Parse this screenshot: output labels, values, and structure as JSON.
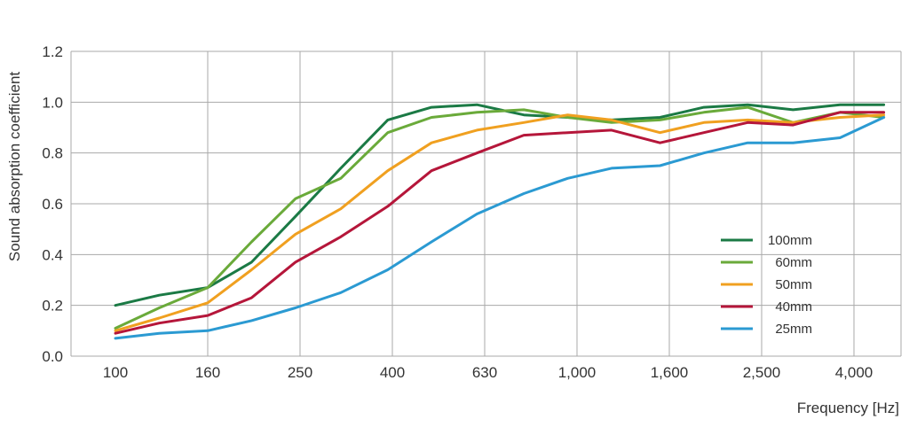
{
  "chart_data": {
    "type": "line",
    "title": "",
    "xlabel": "Frequency [Hz]",
    "ylabel": "Sound absorption coefficient",
    "x_scale": "log",
    "x_ticks": [
      "100",
      "160",
      "250",
      "400",
      "630",
      "1,000",
      "1,600",
      "2,500",
      "4,000"
    ],
    "x": [
      100,
      125,
      160,
      200,
      250,
      315,
      400,
      500,
      630,
      800,
      1000,
      1250,
      1600,
      2000,
      2500,
      3150,
      4000,
      5000
    ],
    "ylim": [
      0,
      1.2
    ],
    "y_ticks": [
      "0.0",
      "0.2",
      "0.4",
      "0.6",
      "0.8",
      "1.0",
      "1.2"
    ],
    "grid": true,
    "legend_position": "bottom-right",
    "series": [
      {
        "name": "100mm",
        "color": "#1b7a45",
        "values": [
          0.2,
          0.24,
          0.27,
          0.37,
          0.55,
          0.74,
          0.93,
          0.98,
          0.99,
          0.95,
          0.94,
          0.93,
          0.94,
          0.98,
          0.99,
          0.97,
          0.99,
          0.99
        ]
      },
      {
        "name": "60mm",
        "color": "#6aaa3a",
        "values": [
          0.11,
          0.19,
          0.27,
          0.45,
          0.62,
          0.7,
          0.88,
          0.94,
          0.96,
          0.97,
          0.94,
          0.92,
          0.93,
          0.96,
          0.98,
          0.92,
          0.96,
          0.94
        ]
      },
      {
        "name": "50mm",
        "color": "#f0a020",
        "values": [
          0.1,
          0.15,
          0.21,
          0.34,
          0.48,
          0.58,
          0.73,
          0.84,
          0.89,
          0.92,
          0.95,
          0.93,
          0.88,
          0.92,
          0.93,
          0.92,
          0.94,
          0.95
        ]
      },
      {
        "name": "40mm",
        "color": "#b5163a",
        "values": [
          0.09,
          0.13,
          0.16,
          0.23,
          0.37,
          0.47,
          0.59,
          0.73,
          0.8,
          0.87,
          0.88,
          0.89,
          0.84,
          0.88,
          0.92,
          0.91,
          0.96,
          0.96
        ]
      },
      {
        "name": "25mm",
        "color": "#2b9ad2",
        "values": [
          0.07,
          0.09,
          0.1,
          0.14,
          0.19,
          0.25,
          0.34,
          0.45,
          0.56,
          0.64,
          0.7,
          0.74,
          0.75,
          0.8,
          0.84,
          0.84,
          0.86,
          0.94
        ]
      }
    ]
  }
}
